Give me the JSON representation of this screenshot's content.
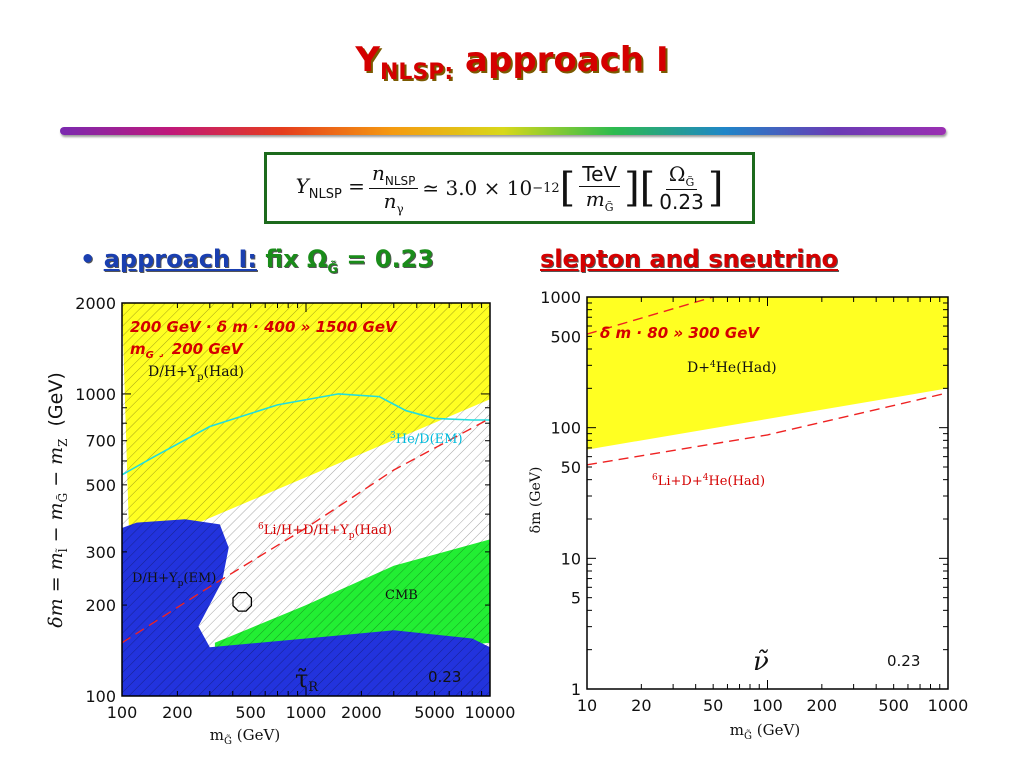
{
  "slide": {
    "title_main": "Y",
    "title_sub": "NLSP:",
    "title_rest": " approach I",
    "equation": {
      "lhs": "Y",
      "lhs_sub": "NLSP",
      "frac1_num": "n",
      "frac1_num_sub": "NLSP",
      "frac1_den": "n",
      "frac1_den_sub": "γ",
      "approx": "≃ 3.0 × 10",
      "exponent": "−12",
      "frac2_num": "TeV",
      "frac2_den": "m",
      "frac2_den_sub": "G̃",
      "frac3_num": "Ω",
      "frac3_num_sub": "G̃",
      "frac3_den": "0.23"
    },
    "bullet_dot": "•",
    "bullet_link": "approach I:",
    "bullet_text": " fix Ω",
    "bullet_sub": "G̃",
    "bullet_value": " = 0.23",
    "right_heading": "slepton and sneutrino"
  },
  "chart_data": [
    {
      "type": "area",
      "xscale": "log",
      "yscale": "log",
      "xlim": [
        100,
        10000
      ],
      "ylim": [
        100,
        2000
      ],
      "xticks": [
        "100",
        "200",
        "500",
        "1000",
        "2000",
        "5000",
        "10000"
      ],
      "yticks": [
        "100",
        "200",
        "300",
        "500",
        "700",
        "1000",
        "2000"
      ],
      "xlabel": "m",
      "xlabel_sub": "G̃",
      "xlabel_unit": " (GeV)",
      "ylabel": "δm = m",
      "ylabel_sub1": "l̃",
      "ylabel_mid": " − m",
      "ylabel_sub2": "G̃",
      "ylabel_mid2": " − m",
      "ylabel_sub3": "Z",
      "ylabel_unit": "(GeV)",
      "annotation_range": "200 GeV · δ m · 400 » 1500 GeV",
      "annotation_mg": "m",
      "annotation_mg_sub": "G",
      "annotation_mg_rest": " ¸ 200 GeV",
      "region_labels": {
        "yellow": "D/H+Y",
        "yellow_sub": "p",
        "yellow_rest": "(Had)",
        "cyan": "He/D(EM)",
        "cyan_sup": "3",
        "red": "Li/H+D/H+Y",
        "red_sup": "6",
        "red_sub": "p",
        "red_rest": "(Had)",
        "blue": "D/H+Y",
        "blue_sub": "p",
        "blue_rest": "(EM)",
        "green": "CMB"
      },
      "particle": "τ̃",
      "particle_sub": "R",
      "omega_label": "0.23",
      "regions": [
        {
          "name": "yellow-excluded",
          "color": "#ffff22",
          "points": [
            [
              100,
              2000
            ],
            [
              10000,
              2000
            ],
            [
              10000,
              960
            ],
            [
              110,
              300
            ]
          ]
        },
        {
          "name": "green-excluded",
          "color": "#22ee33",
          "points": [
            [
              320,
              150
            ],
            [
              1000,
              200
            ],
            [
              3000,
              270
            ],
            [
              10000,
              330
            ],
            [
              10000,
              150
            ],
            [
              320,
              120
            ]
          ]
        },
        {
          "name": "blue-excluded",
          "color": "#2233dd",
          "points": [
            [
              100,
              100
            ],
            [
              10000,
              100
            ],
            [
              10000,
              145
            ],
            [
              8000,
              155
            ],
            [
              3000,
              165
            ],
            [
              1000,
              155
            ],
            [
              300,
              145
            ],
            [
              260,
              170
            ],
            [
              350,
              240
            ],
            [
              380,
              310
            ],
            [
              340,
              370
            ],
            [
              220,
              385
            ],
            [
              120,
              375
            ],
            [
              100,
              360
            ]
          ]
        }
      ],
      "cyan_curve": [
        [
          100,
          540
        ],
        [
          150,
          620
        ],
        [
          300,
          780
        ],
        [
          700,
          920
        ],
        [
          1500,
          1000
        ],
        [
          2500,
          980
        ],
        [
          3500,
          880
        ],
        [
          5000,
          830
        ],
        [
          8000,
          820
        ],
        [
          10000,
          820
        ]
      ],
      "red_dashed": [
        [
          100,
          150
        ],
        [
          300,
          230
        ],
        [
          1000,
          360
        ],
        [
          3000,
          560
        ],
        [
          10000,
          830
        ]
      ],
      "marker": [
        450,
        205
      ]
    },
    {
      "type": "area",
      "xscale": "log",
      "yscale": "log",
      "xlim": [
        10,
        1000
      ],
      "ylim": [
        1,
        1000
      ],
      "xticks": [
        "10",
        "20",
        "50",
        "100",
        "200",
        "500",
        "1000"
      ],
      "yticks": [
        "1",
        "5",
        "10",
        "50",
        "100",
        "500",
        "1000"
      ],
      "xlabel": "m",
      "xlabel_sub": "G̃",
      "xlabel_unit": " (GeV)",
      "ylabel": "δm (GeV)",
      "annotation_range": "δ m · 80 » 300 GeV",
      "region_labels": {
        "yellow": "D+",
        "yellow_sup": "4",
        "yellow_rest": "He(Had)",
        "red": "Li+D+",
        "red_sup1": "6",
        "red_sup2": "4",
        "red_rest": "He(Had)"
      },
      "particle": "ν̃",
      "omega_label": "0.23",
      "regions": [
        {
          "name": "yellow-excluded",
          "color": "#ffff22",
          "points": [
            [
              10,
              1000
            ],
            [
              1000,
              1000
            ],
            [
              1000,
              200
            ],
            [
              10,
              68
            ]
          ]
        }
      ],
      "red_dashed": [
        [
          10,
          52
        ],
        [
          100,
          88
        ],
        [
          1000,
          185
        ]
      ],
      "red_dashed_top": [
        [
          10,
          520
        ],
        [
          50,
          1000
        ]
      ]
    }
  ]
}
